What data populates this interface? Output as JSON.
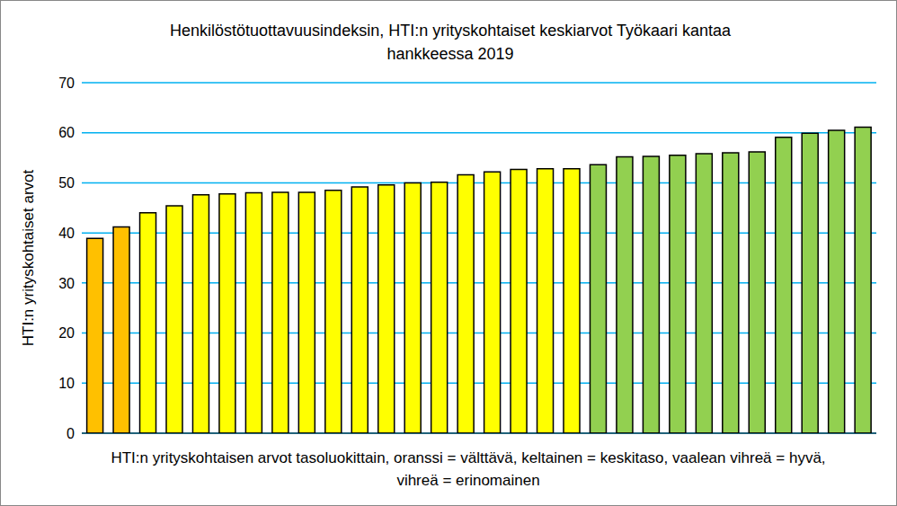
{
  "chart_data": {
    "type": "bar",
    "title": "Henkilöstötuottavuusindeksin, HTI:n yrityskohtaiset keskiarvot Työkaari kantaa hankkeessa 2019",
    "x_label": "HTI:n yrityskohtaisen arvot tasoluokittain, oranssi = välttävä, keltainen = keskitaso, vaalean vihreä = hyvä, vihreä = erinomainen",
    "y_label": "HTI:n yrityskohtaiset arvot",
    "categories": [
      null,
      null,
      null,
      null,
      null,
      null,
      null,
      null,
      null,
      null,
      null,
      null,
      null,
      null,
      null,
      null,
      null,
      null,
      null,
      null,
      null,
      null,
      null,
      null,
      null,
      null,
      null,
      null,
      null,
      null
    ],
    "values": [
      38.9,
      41.2,
      44.0,
      45.4,
      47.6,
      47.8,
      48.0,
      48.1,
      48.1,
      48.5,
      49.2,
      49.6,
      50.0,
      50.1,
      51.6,
      52.2,
      52.7,
      52.8,
      52.8,
      53.6,
      55.2,
      55.3,
      55.5,
      55.8,
      56.0,
      56.2,
      59.1,
      59.9,
      60.5,
      61.1
    ],
    "colors": [
      "#FFC000",
      "#FFC000",
      "#FFFF00",
      "#FFFF00",
      "#FFFF00",
      "#FFFF00",
      "#FFFF00",
      "#FFFF00",
      "#FFFF00",
      "#FFFF00",
      "#FFFF00",
      "#FFFF00",
      "#FFFF00",
      "#FFFF00",
      "#FFFF00",
      "#FFFF00",
      "#FFFF00",
      "#FFFF00",
      "#FFFF00",
      "#92D050",
      "#92D050",
      "#92D050",
      "#92D050",
      "#92D050",
      "#92D050",
      "#92D050",
      "#92D050",
      "#92D050",
      "#92D050",
      "#92D050"
    ],
    "ylim": [
      0,
      70
    ],
    "yticks": [
      0,
      10,
      20,
      30,
      40,
      50,
      60,
      70
    ],
    "grid": true,
    "tick_labels": "y"
  }
}
